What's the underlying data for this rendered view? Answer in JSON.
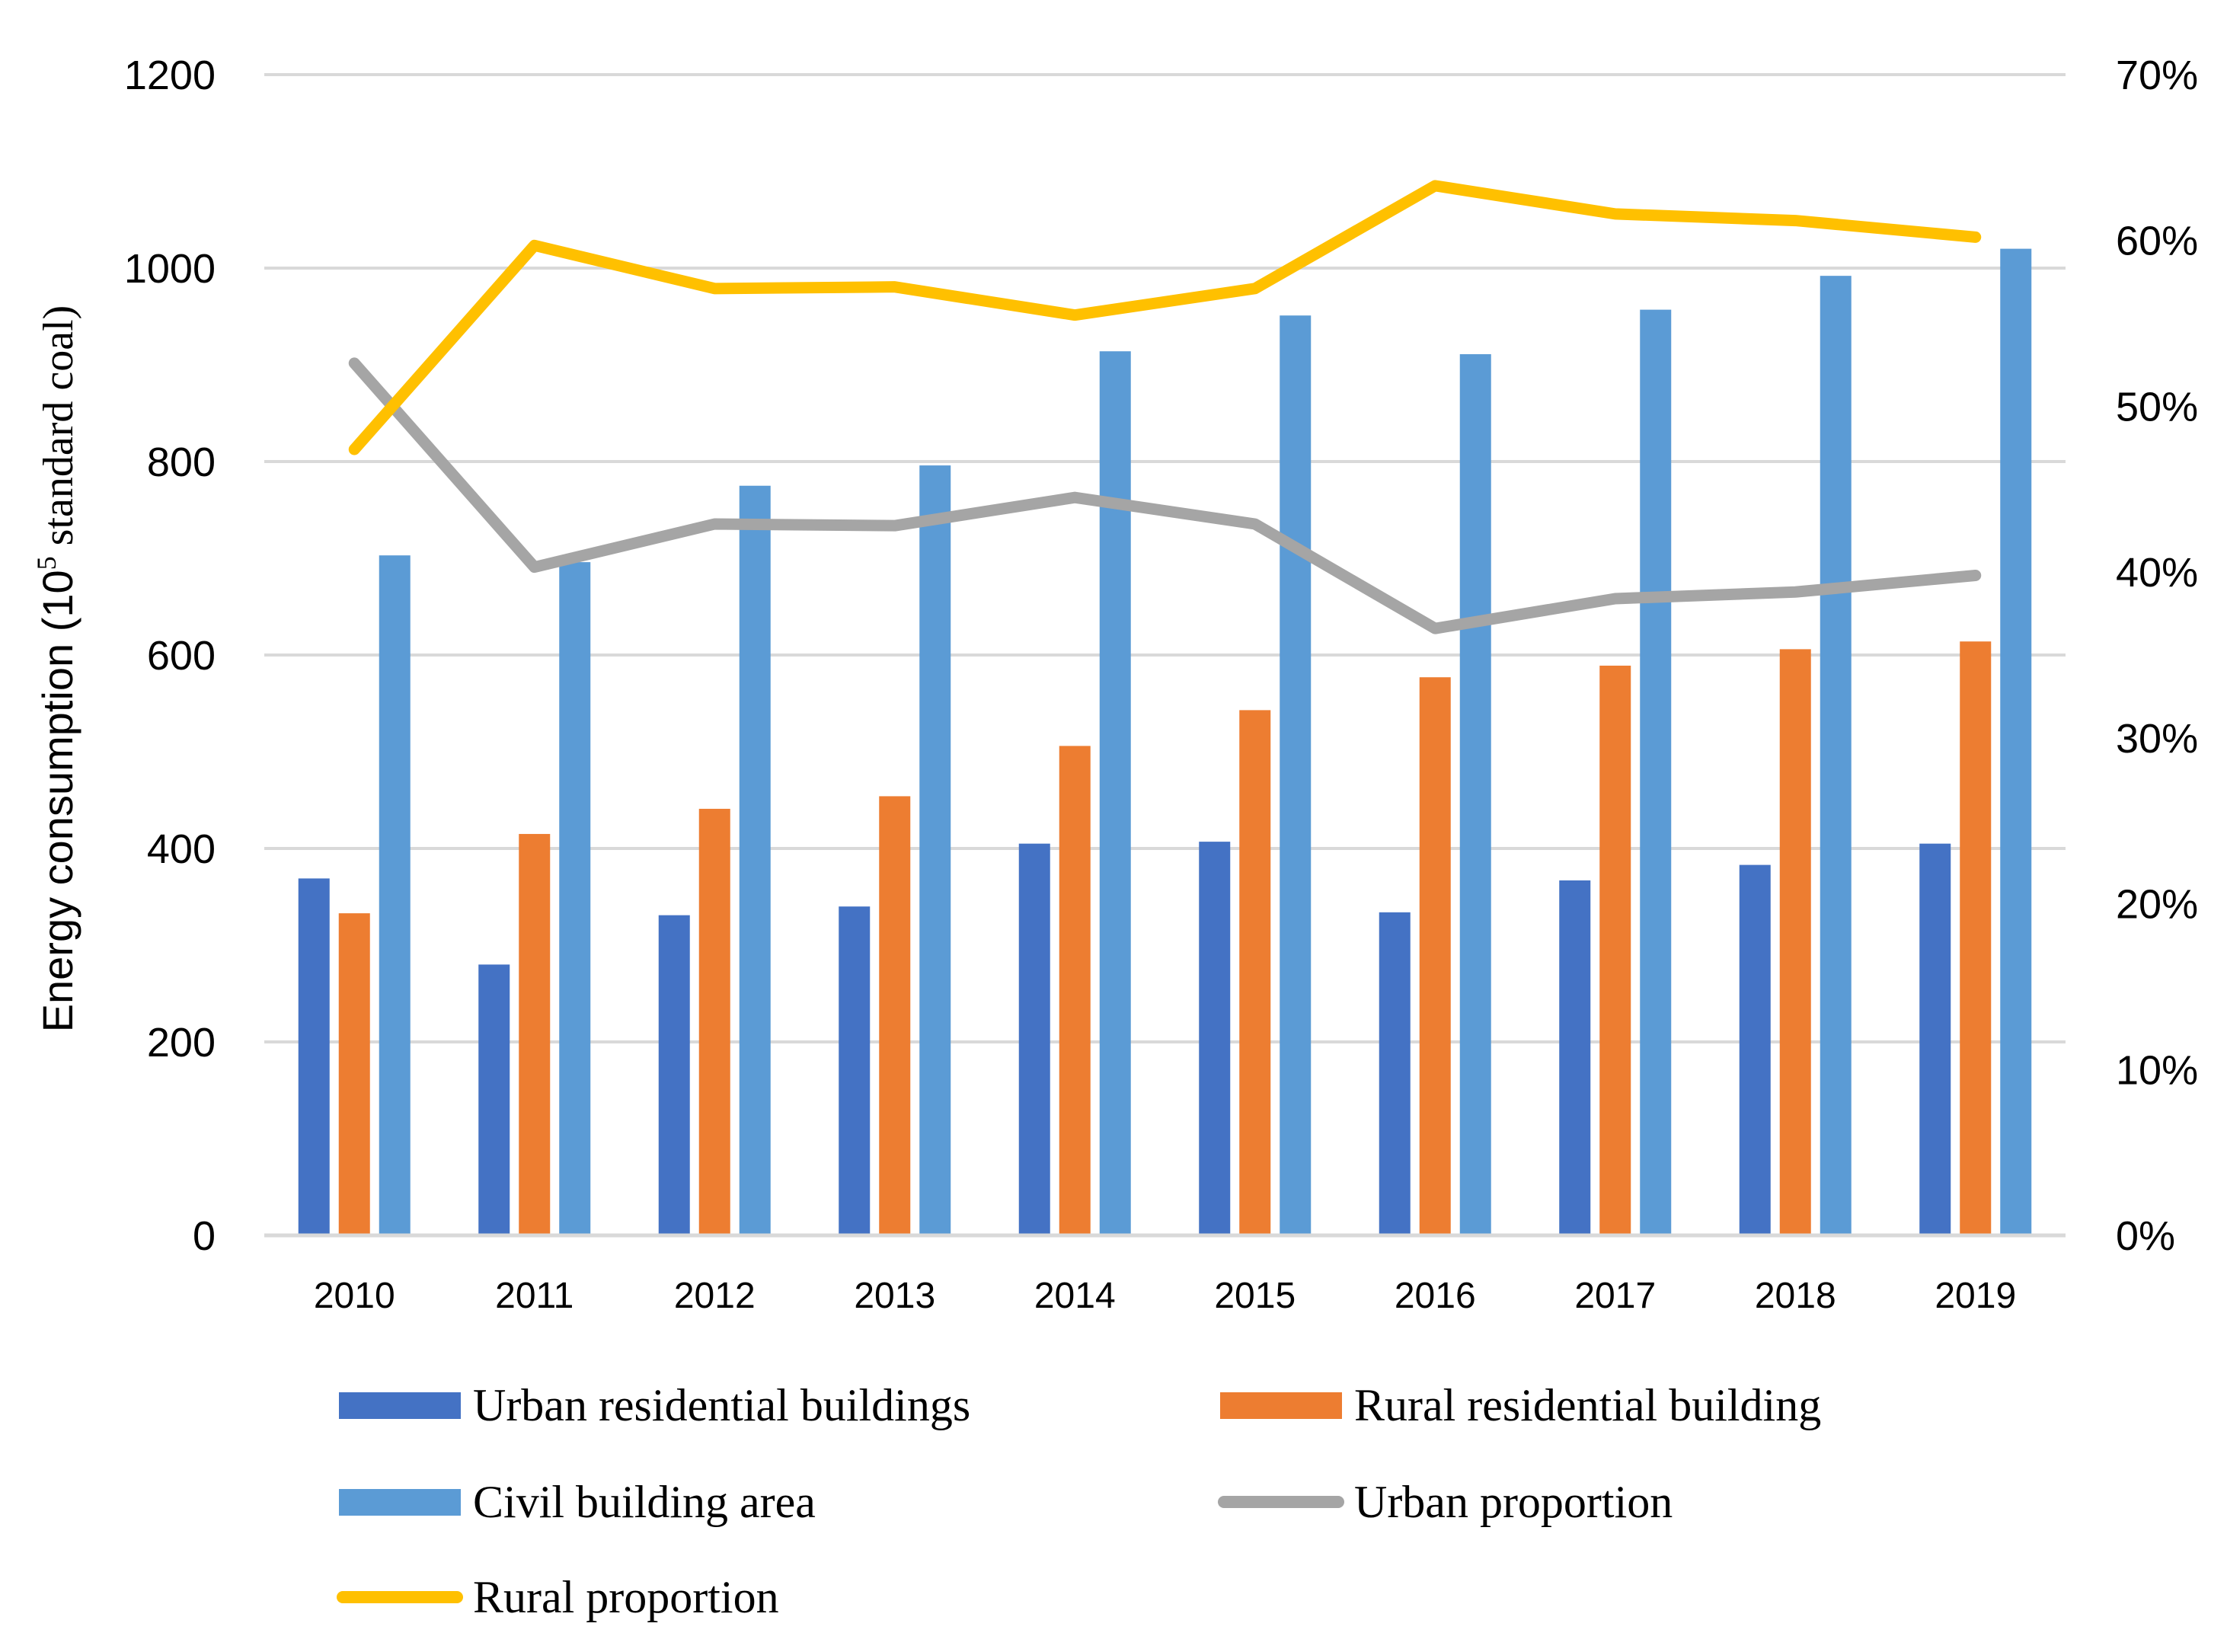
{
  "chart_data": {
    "type": "bar",
    "title": "",
    "xlabel": "",
    "ylabel": {
      "prefix": "Energy consumption (10",
      "superscript": "5",
      "suffix": " standard coal)"
    },
    "categories": [
      "2010",
      "2011",
      "2012",
      "2013",
      "2014",
      "2015",
      "2016",
      "2017",
      "2018",
      "2019"
    ],
    "ylim": [
      0,
      1200
    ],
    "yticks": [
      0,
      200,
      400,
      600,
      800,
      1000,
      1200
    ],
    "y2lim": [
      0,
      70
    ],
    "y2ticks": [
      0,
      10,
      20,
      30,
      40,
      50,
      60,
      70
    ],
    "y2_tick_labels": [
      "0%",
      "10%",
      "20%",
      "30%",
      "40%",
      "50%",
      "60%",
      "70%"
    ],
    "grid": true,
    "legend_position": "bottom",
    "series": [
      {
        "name": "Urban residential buildings",
        "kind": "bar",
        "axis": "left",
        "color": "#4472C4",
        "values": [
          369,
          280,
          331,
          340,
          405,
          407,
          334,
          367,
          383,
          405
        ]
      },
      {
        "name": "Rural residential building",
        "kind": "bar",
        "axis": "left",
        "color": "#ED7D31",
        "values": [
          333,
          415,
          441,
          454,
          506,
          543,
          577,
          589,
          606,
          614
        ]
      },
      {
        "name": "Civil building area",
        "kind": "bar",
        "axis": "left",
        "color": "#5B9BD5",
        "values": [
          703,
          696,
          775,
          796,
          914,
          951,
          911,
          957,
          992,
          1020
        ]
      },
      {
        "name": "Urban proportion",
        "kind": "line",
        "axis": "right",
        "color": "#A5A5A5",
        "values": [
          52.6,
          40.3,
          42.9,
          42.8,
          44.5,
          42.9,
          36.6,
          38.4,
          38.8,
          39.8
        ]
      },
      {
        "name": "Rural proportion",
        "kind": "line",
        "axis": "right",
        "color": "#FFC000",
        "values": [
          47.4,
          59.7,
          57.1,
          57.2,
          55.5,
          57.1,
          63.3,
          61.6,
          61.2,
          60.2
        ]
      }
    ]
  }
}
